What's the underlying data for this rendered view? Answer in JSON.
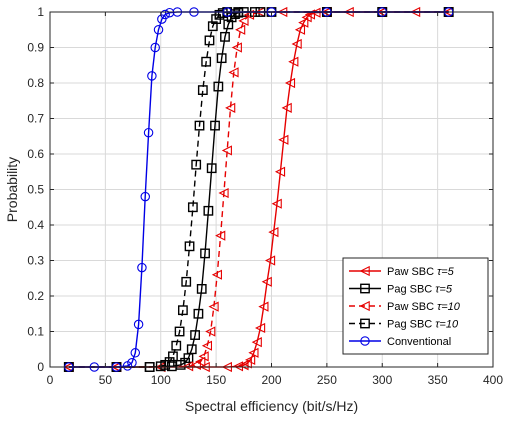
{
  "chart_data": {
    "type": "line",
    "title": "",
    "xlabel": "Spectral efficiency (bit/s/Hz)",
    "ylabel": "Probability",
    "xlim": [
      0,
      400
    ],
    "ylim": [
      0,
      1
    ],
    "xticks": [
      0,
      50,
      100,
      150,
      200,
      250,
      300,
      350,
      400
    ],
    "yticks": [
      0,
      0.1,
      0.2,
      0.3,
      0.4,
      0.5,
      0.6,
      0.7,
      0.8,
      0.9,
      1
    ],
    "xtick_labels": [
      "0",
      "50",
      "100",
      "150",
      "200",
      "250",
      "300",
      "350",
      "400"
    ],
    "ytick_labels": [
      "0",
      "0.1",
      "0.2",
      "0.3",
      "0.4",
      "0.5",
      "0.6",
      "0.7",
      "0.8",
      "0.9",
      "1"
    ],
    "grid": true,
    "legend_position": "bottom-right",
    "legend": [
      {
        "name": "Paw SBC",
        "tau": "τ=5"
      },
      {
        "name": "Pag SBC",
        "tau": "τ=5"
      },
      {
        "name": "Paw SBC",
        "tau": "τ=10"
      },
      {
        "name": "Pag SBC",
        "tau": "τ=10"
      },
      {
        "name": "Conventional",
        "tau": ""
      }
    ],
    "series": [
      {
        "name": "Paw SBC τ=5",
        "color": "#e60000",
        "line": "solid",
        "marker": "triangle-left",
        "x": [
          17,
          60,
          100,
          140,
          160,
          170,
          175,
          178,
          181,
          184,
          187,
          190,
          193,
          196,
          199,
          202,
          205,
          208,
          211,
          214,
          217,
          220,
          223,
          226,
          229,
          232,
          235,
          240,
          250,
          270,
          300,
          330,
          360
        ],
        "y": [
          0,
          0,
          0,
          0,
          0,
          0.002,
          0.005,
          0.01,
          0.02,
          0.04,
          0.07,
          0.11,
          0.17,
          0.24,
          0.3,
          0.38,
          0.46,
          0.55,
          0.64,
          0.73,
          0.8,
          0.86,
          0.91,
          0.95,
          0.97,
          0.985,
          0.993,
          0.998,
          1,
          1,
          1,
          1,
          1
        ]
      },
      {
        "name": "Pag SBC τ=5",
        "color": "#000000",
        "line": "solid",
        "marker": "square",
        "x": [
          17,
          60,
          90,
          110,
          118,
          122,
          125,
          128,
          131,
          134,
          137,
          140,
          143,
          146,
          149,
          152,
          155,
          158,
          161,
          164,
          167,
          170,
          175,
          185,
          200,
          250,
          300,
          360
        ],
        "y": [
          0,
          0,
          0,
          0.002,
          0.006,
          0.012,
          0.025,
          0.05,
          0.09,
          0.15,
          0.22,
          0.32,
          0.44,
          0.56,
          0.68,
          0.79,
          0.87,
          0.93,
          0.965,
          0.985,
          0.994,
          0.998,
          1,
          1,
          1,
          1,
          1,
          1
        ]
      },
      {
        "name": "Paw SBC τ=10",
        "color": "#e60000",
        "line": "dashed",
        "marker": "triangle-left",
        "x": [
          17,
          60,
          100,
          125,
          132,
          136,
          139,
          142,
          145,
          148,
          151,
          154,
          157,
          160,
          163,
          166,
          169,
          172,
          175,
          180,
          190,
          210,
          250,
          300,
          360
        ],
        "y": [
          0,
          0,
          0,
          0.002,
          0.006,
          0.015,
          0.03,
          0.06,
          0.1,
          0.17,
          0.26,
          0.37,
          0.49,
          0.61,
          0.73,
          0.83,
          0.9,
          0.95,
          0.975,
          0.992,
          1,
          1,
          1,
          1,
          1
        ]
      },
      {
        "name": "Pag SBC τ=10",
        "color": "#000000",
        "line": "dashed",
        "marker": "square",
        "x": [
          17,
          60,
          90,
          100,
          104,
          108,
          111,
          114,
          117,
          120,
          123,
          126,
          129,
          132,
          135,
          138,
          141,
          144,
          147,
          150,
          153,
          156,
          160,
          170,
          190,
          250,
          300,
          360
        ],
        "y": [
          0,
          0,
          0,
          0.002,
          0.006,
          0.014,
          0.03,
          0.06,
          0.1,
          0.16,
          0.24,
          0.34,
          0.45,
          0.57,
          0.68,
          0.78,
          0.86,
          0.92,
          0.96,
          0.98,
          0.992,
          0.997,
          1,
          1,
          1,
          1,
          1,
          1
        ]
      },
      {
        "name": "Conventional",
        "color": "#0000e6",
        "line": "solid",
        "marker": "circle",
        "x": [
          17,
          40,
          60,
          70,
          74,
          77,
          80,
          83,
          86,
          89,
          92,
          95,
          98,
          101,
          104,
          108,
          115,
          130,
          160,
          200,
          250,
          300,
          360
        ],
        "y": [
          0,
          0,
          0,
          0.003,
          0.012,
          0.04,
          0.12,
          0.28,
          0.48,
          0.66,
          0.82,
          0.9,
          0.95,
          0.98,
          0.993,
          0.998,
          1,
          1,
          1,
          1,
          1,
          1,
          1
        ]
      }
    ]
  }
}
